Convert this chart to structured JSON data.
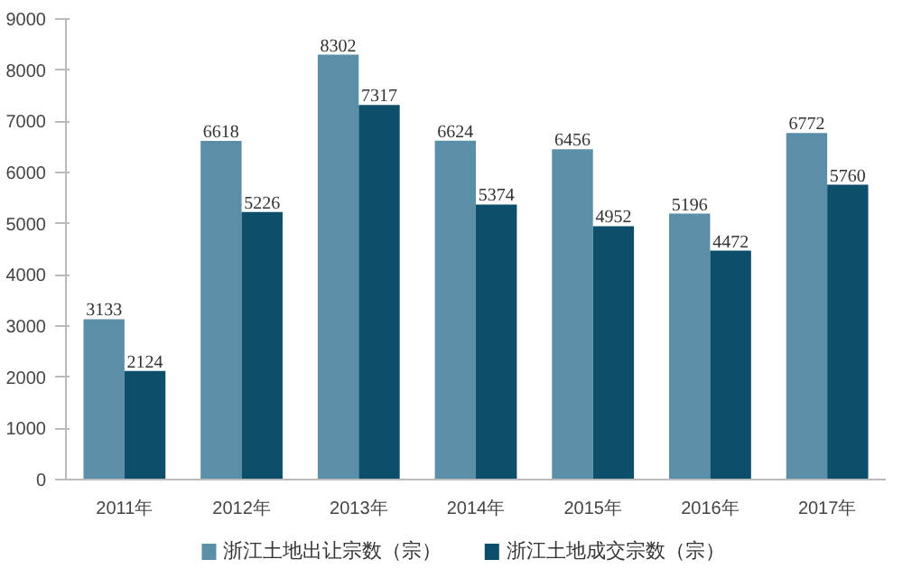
{
  "chart_data": {
    "type": "bar",
    "categories": [
      "2011年",
      "2012年",
      "2013年",
      "2014年",
      "2015年",
      "2016年",
      "2017年"
    ],
    "series": [
      {
        "name": "浙江土地出让宗数（宗）",
        "color": "#5b8fa8",
        "values": [
          3133,
          6618,
          8302,
          6624,
          6456,
          5196,
          6772
        ]
      },
      {
        "name": "浙江土地成交宗数（宗）",
        "color": "#0d4f6b",
        "values": [
          2124,
          5226,
          7317,
          5374,
          4952,
          4472,
          5760
        ]
      }
    ],
    "ylim": [
      0,
      9000
    ],
    "yticks": [
      0,
      1000,
      2000,
      3000,
      4000,
      5000,
      6000,
      7000,
      8000,
      9000
    ],
    "grid": false,
    "legend": "bottom",
    "data_labels": true
  }
}
